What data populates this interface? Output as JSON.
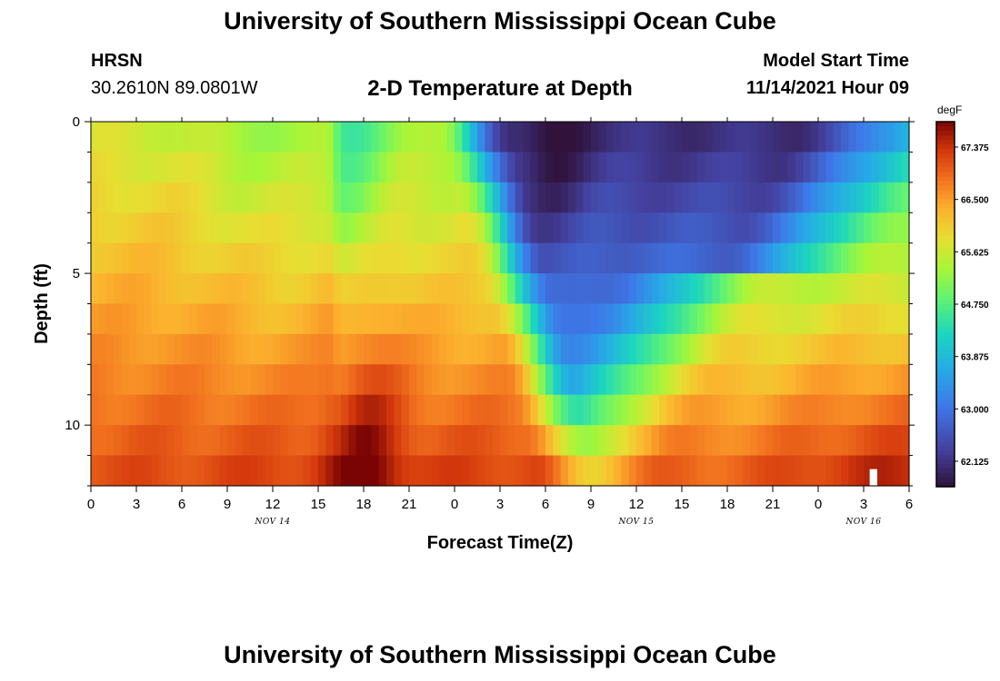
{
  "header": {
    "title": "University of Southern Mississippi Ocean Cube",
    "station": "HRSN",
    "coords": "30.2610N  89.0801W",
    "subtitle": "2-D Temperature at Depth",
    "model_label": "Model Start Time",
    "model_time": "11/14/2021 Hour 09"
  },
  "footer": {
    "title": "University of Southern Mississippi Ocean Cube"
  },
  "chart_data": {
    "type": "heatmap",
    "xlabel": "Forecast Time(Z)",
    "ylabel": "Depth (ft)",
    "x_tick_labels": [
      "0",
      "3",
      "6",
      "9",
      "12",
      "15",
      "18",
      "21",
      "0",
      "3",
      "6",
      "9",
      "12",
      "15",
      "18",
      "21",
      "0",
      "3",
      "6"
    ],
    "x_tick_hours": [
      0,
      3,
      6,
      9,
      12,
      15,
      18,
      21,
      24,
      27,
      30,
      33,
      36,
      39,
      42,
      45,
      48,
      51,
      54
    ],
    "date_labels": [
      {
        "text": "NOV 14",
        "hour": 12
      },
      {
        "text": "NOV 15",
        "hour": 36
      },
      {
        "text": "NOV 16",
        "hour": 51
      }
    ],
    "xlim": [
      0,
      54
    ],
    "y_tick_labels": [
      "0",
      "5",
      "10"
    ],
    "y_tick_values": [
      0,
      5,
      10
    ],
    "ylim": [
      0,
      12
    ],
    "colorbar": {
      "unit": "degF",
      "min": 61.7,
      "max": 67.8,
      "labels": [
        "67.375",
        "66.500",
        "65.625",
        "64.750",
        "63.875",
        "63.000",
        "62.125"
      ]
    }
  }
}
